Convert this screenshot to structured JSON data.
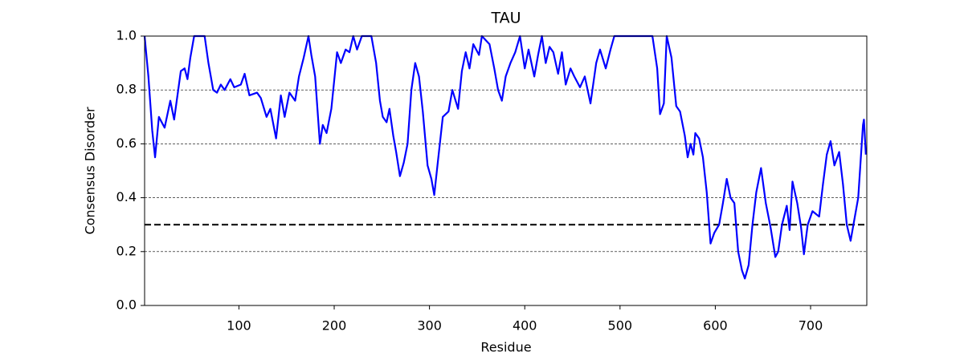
{
  "chart_data": {
    "type": "line",
    "title": "TAU",
    "x_label": "Residue",
    "y_label": "Consensus Disorder",
    "xlim": [
      1,
      759
    ],
    "ylim": [
      0,
      1
    ],
    "xticks": [
      100,
      200,
      300,
      400,
      500,
      600,
      700
    ],
    "yticks": [
      {
        "value": 0,
        "label": "0.0"
      },
      0.2,
      0.4,
      0.6,
      0.8,
      {
        "value": 1,
        "label": "1.0"
      }
    ],
    "grid": true,
    "threshold": 0.3,
    "x": [
      1,
      5,
      9,
      12,
      16,
      22,
      28,
      32,
      39,
      43,
      46,
      49,
      53,
      64,
      68,
      73,
      77,
      81,
      85,
      91,
      95,
      102,
      106,
      111,
      119,
      123,
      129,
      133,
      139,
      144,
      148,
      153,
      159,
      163,
      168,
      173,
      176,
      180,
      185,
      188,
      192,
      197,
      203,
      207,
      212,
      216,
      220,
      224,
      229,
      239,
      244,
      248,
      251,
      255,
      258,
      262,
      265,
      269,
      273,
      277,
      281,
      285,
      289,
      293,
      298,
      302,
      305,
      309,
      314,
      320,
      324,
      330,
      334,
      338,
      342,
      346,
      352,
      355,
      363,
      368,
      372,
      376,
      380,
      385,
      390,
      395,
      400,
      404,
      410,
      414,
      418,
      422,
      426,
      430,
      435,
      439,
      443,
      448,
      452,
      458,
      463,
      469,
      475,
      479,
      485,
      490,
      494,
      523,
      534,
      539,
      542,
      546,
      549,
      554,
      559,
      563,
      568,
      571,
      574,
      577,
      579,
      583,
      587,
      591,
      595,
      599,
      604,
      608,
      612,
      616,
      620,
      624,
      628,
      631,
      635,
      639,
      643,
      648,
      653,
      658,
      663,
      666,
      670,
      675,
      678,
      681,
      686,
      690,
      693,
      697,
      702,
      709,
      713,
      717,
      721,
      725,
      730,
      734,
      738,
      742,
      746,
      750,
      755,
      756,
      758
    ],
    "series": [
      {
        "name": "Consensus Disorder",
        "color": "#0000ff",
        "values": [
          1.0,
          0.85,
          0.65,
          0.55,
          0.7,
          0.66,
          0.76,
          0.69,
          0.87,
          0.88,
          0.84,
          0.92,
          1.0,
          1.0,
          0.9,
          0.8,
          0.79,
          0.82,
          0.8,
          0.84,
          0.81,
          0.82,
          0.86,
          0.78,
          0.79,
          0.77,
          0.7,
          0.73,
          0.62,
          0.78,
          0.7,
          0.79,
          0.76,
          0.85,
          0.92,
          1.0,
          0.93,
          0.85,
          0.6,
          0.67,
          0.64,
          0.73,
          0.94,
          0.9,
          0.95,
          0.94,
          1.0,
          0.95,
          1.0,
          1.0,
          0.9,
          0.76,
          0.7,
          0.68,
          0.73,
          0.63,
          0.57,
          0.48,
          0.53,
          0.6,
          0.8,
          0.9,
          0.85,
          0.72,
          0.52,
          0.47,
          0.41,
          0.54,
          0.7,
          0.72,
          0.8,
          0.73,
          0.87,
          0.94,
          0.88,
          0.97,
          0.93,
          1.0,
          0.97,
          0.88,
          0.8,
          0.76,
          0.85,
          0.9,
          0.94,
          1.0,
          0.88,
          0.95,
          0.85,
          0.93,
          1.0,
          0.9,
          0.96,
          0.94,
          0.86,
          0.94,
          0.82,
          0.88,
          0.85,
          0.81,
          0.85,
          0.75,
          0.9,
          0.95,
          0.88,
          0.95,
          1.0,
          1.0,
          1.0,
          0.88,
          0.71,
          0.75,
          1.0,
          0.92,
          0.74,
          0.72,
          0.63,
          0.55,
          0.6,
          0.56,
          0.64,
          0.62,
          0.55,
          0.42,
          0.23,
          0.27,
          0.3,
          0.38,
          0.47,
          0.4,
          0.38,
          0.2,
          0.13,
          0.1,
          0.15,
          0.3,
          0.42,
          0.51,
          0.38,
          0.29,
          0.18,
          0.2,
          0.3,
          0.37,
          0.28,
          0.46,
          0.38,
          0.29,
          0.19,
          0.3,
          0.35,
          0.33,
          0.45,
          0.56,
          0.61,
          0.52,
          0.57,
          0.45,
          0.3,
          0.24,
          0.32,
          0.4,
          0.67,
          0.69,
          0.56
        ]
      }
    ]
  }
}
